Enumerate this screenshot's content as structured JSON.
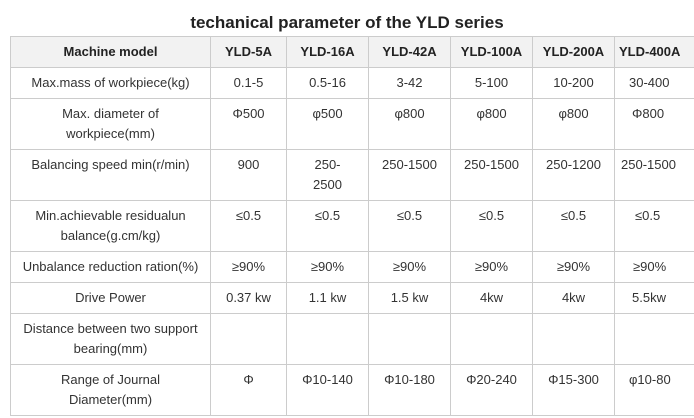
{
  "title": "techanical parameter of the YLD series",
  "table": {
    "header": {
      "label": "Machine model",
      "models": [
        "YLD-5A",
        "YLD-16A",
        "YLD-42A",
        "YLD-100A",
        "YLD-200A",
        "YLD-400A"
      ]
    },
    "rows": [
      {
        "label": "Max.mass of workpiece(kg)",
        "values": [
          "0.1-5",
          "0.5-16",
          "3-42",
          "5-100",
          "10-200",
          "30-400"
        ]
      },
      {
        "label": "Max. diameter of workpiece(mm)",
        "values": [
          "Φ500",
          "φ500",
          "φ800",
          "φ800",
          "φ800",
          "Φ800"
        ]
      },
      {
        "label": "Balancing speed min(r/min)",
        "values": [
          "900",
          "250-2500",
          "250-1500",
          "250-1500",
          "250-1200",
          "250-1500"
        ]
      },
      {
        "label": "Min.achievable residualun balance(g.cm/kg)",
        "values": [
          "≤0.5",
          "≤0.5",
          "≤0.5",
          "≤0.5",
          "≤0.5",
          "≤0.5"
        ]
      },
      {
        "label": "Unbalance reduction ration(%)",
        "values": [
          "≥90%",
          "≥90%",
          "≥90%",
          "≥90%",
          "≥90%",
          "≥90%"
        ]
      },
      {
        "label": "Drive Power",
        "values": [
          "0.37 kw",
          "1.1 kw",
          "1.5 kw",
          "4kw",
          "4kw",
          "5.5kw"
        ]
      },
      {
        "label": "Distance between two support bearing(mm)",
        "values": [
          "",
          "",
          "",
          "",
          "",
          ""
        ]
      },
      {
        "label": "Range of Journal Diameter(mm)",
        "values": [
          "Φ",
          "Φ10-140",
          "Φ10-180",
          "Φ20-240",
          "Φ15-300",
          "φ10-80"
        ]
      }
    ]
  }
}
